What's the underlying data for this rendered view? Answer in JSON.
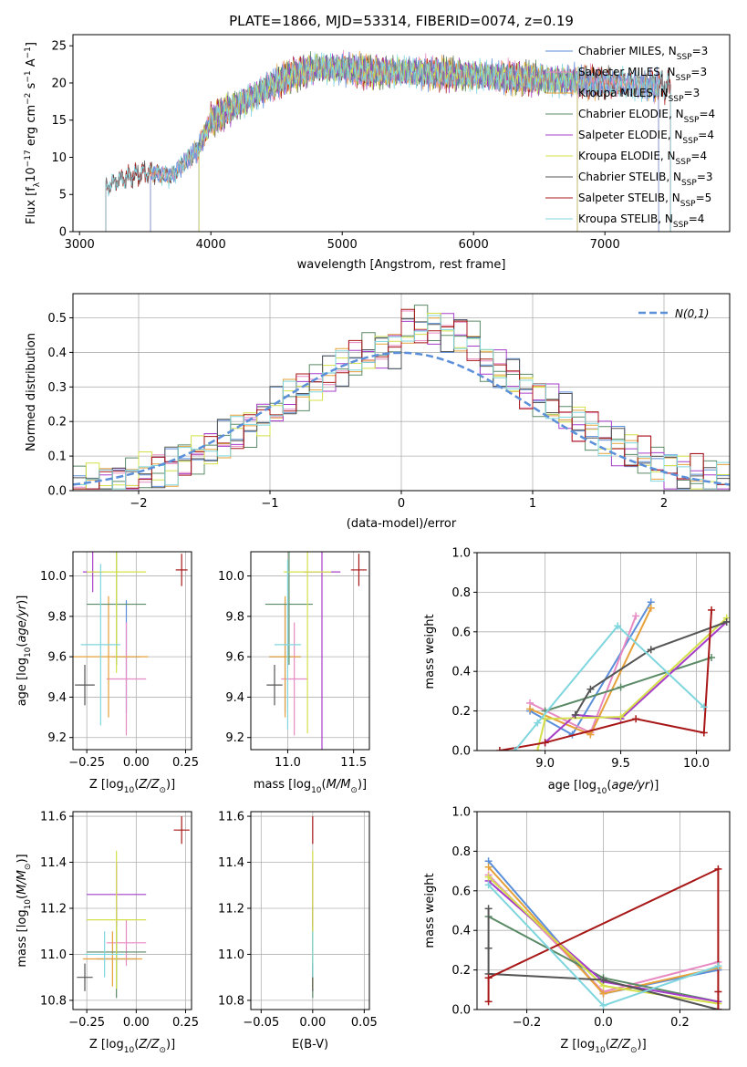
{
  "figure": {
    "title": "PLATE=1866, MJD=53314, FIBERID=0074, z=0.19"
  },
  "models": [
    {
      "name": "Chabrier MILES",
      "nssp": 3,
      "color": "#5b8fd9",
      "label": "Chabrier MILES, N_SSP=3"
    },
    {
      "name": "Salpeter MILES",
      "nssp": 3,
      "color": "#e78ac3",
      "label": "Salpeter MILES, N_SSP=3"
    },
    {
      "name": "Kroupa MILES",
      "nssp": 3,
      "color": "#e6a13a",
      "label": "Kroupa MILES, N_SSP=3"
    },
    {
      "name": "Chabrier ELODIE",
      "nssp": 4,
      "color": "#5a8a66",
      "label": "Chabrier ELODIE, N_SSP=4"
    },
    {
      "name": "Salpeter ELODIE",
      "nssp": 4,
      "color": "#a63dc9",
      "label": "Salpeter ELODIE, N_SSP=4"
    },
    {
      "name": "Kroupa ELODIE",
      "nssp": 4,
      "color": "#d4e04a",
      "label": "Kroupa ELODIE, N_SSP=4"
    },
    {
      "name": "Chabrier STELIB",
      "nssp": 3,
      "color": "#555555",
      "label": "Chabrier STELIB, N_SSP=3"
    },
    {
      "name": "Salpeter STELIB",
      "nssp": 5,
      "color": "#a81717",
      "label": "Salpeter STELIB, N_SSP=5"
    },
    {
      "name": "Kroupa STELIB",
      "nssp": 4,
      "color": "#7fd6de",
      "label": "Kroupa STELIB, N_SSP=4"
    }
  ],
  "chart_data": [
    {
      "id": "spectrum",
      "type": "line",
      "title": "PLATE=1866, MJD=53314, FIBERID=0074, z=0.19",
      "xlabel": "wavelength [Angstrom, rest frame]",
      "ylabel": "Flux [f_λ 10^-17 erg cm^-2 s^-1 A^-1]",
      "xlim": [
        2950,
        7950
      ],
      "ylim": [
        0,
        26.5
      ],
      "xticks": [
        3000,
        4000,
        5000,
        6000,
        7000
      ],
      "yticks": [
        0,
        5,
        10,
        15,
        20,
        25
      ],
      "continuum": {
        "x": [
          3200,
          3300,
          3500,
          3700,
          3900,
          4000,
          4200,
          4400,
          4600,
          4800,
          5000,
          5200,
          5500,
          6000,
          6500,
          7000,
          7500
        ],
        "y": [
          6,
          7,
          8,
          7.5,
          11,
          15,
          17,
          19,
          21,
          22,
          22,
          21.5,
          21.5,
          21,
          20.5,
          20,
          19.5
        ]
      },
      "coverage": [
        {
          "model": "Chabrier MILES",
          "x_start": 3540,
          "x_end": 7410
        },
        {
          "model": "Salpeter MILES",
          "x_start": 3540,
          "x_end": 7410
        },
        {
          "model": "Kroupa MILES",
          "x_start": 3540,
          "x_end": 7410
        },
        {
          "model": "Chabrier ELODIE",
          "x_start": 3910,
          "x_end": 6790
        },
        {
          "model": "Salpeter ELODIE",
          "x_start": 3910,
          "x_end": 6790
        },
        {
          "model": "Kroupa ELODIE",
          "x_start": 3910,
          "x_end": 6790
        },
        {
          "model": "Chabrier STELIB",
          "x_start": 3200,
          "x_end": 7500
        },
        {
          "model": "Salpeter STELIB",
          "x_start": 3200,
          "x_end": 7500
        },
        {
          "model": "Kroupa STELIB",
          "x_start": 3200,
          "x_end": 7500
        }
      ],
      "legend": "upper right"
    },
    {
      "id": "residuals",
      "type": "bar",
      "xlabel": "(data-model)/error",
      "ylabel": "Normed distribution",
      "xlim": [
        -2.5,
        2.5
      ],
      "ylim": [
        0,
        0.57
      ],
      "xticks": [
        -2,
        -1,
        0,
        1,
        2
      ],
      "yticks": [
        0.0,
        0.1,
        0.2,
        0.3,
        0.4,
        0.5
      ],
      "bin_width": 0.1,
      "reference": {
        "name": "N(0,1)",
        "mean": 0,
        "sigma": 1,
        "style": "dashed"
      },
      "grid": true,
      "legend": "upper right"
    },
    {
      "id": "age-vs-Z",
      "type": "scatter",
      "xlabel": "Z [log10(Z/Z⊙)]",
      "ylabel": "age [log10(age/yr)]",
      "xlim": [
        -0.32,
        0.28
      ],
      "ylim": [
        9.14,
        10.12
      ],
      "xticks": [
        -0.25,
        0.0,
        0.25
      ],
      "yticks": [
        9.2,
        9.4,
        9.6,
        9.8,
        10.0
      ],
      "grid": true,
      "points": [
        {
          "model": "Chabrier MILES",
          "x": -0.05,
          "y": 9.6,
          "xerr": 0.07,
          "yerr": 0.28
        },
        {
          "model": "Salpeter MILES",
          "x": -0.05,
          "y": 9.49,
          "xerr": 0.1,
          "yerr": 0.28
        },
        {
          "model": "Kroupa MILES",
          "x": -0.14,
          "y": 9.6,
          "xerr": 0.2,
          "yerr": 0.3
        },
        {
          "model": "Chabrier ELODIE",
          "x": -0.1,
          "y": 9.86,
          "xerr": 0.15,
          "yerr": 0.3
        },
        {
          "model": "Salpeter ELODIE",
          "x": -0.22,
          "y": 10.02,
          "xerr": 0.05,
          "yerr": 0.1
        },
        {
          "model": "Kroupa ELODIE",
          "x": -0.1,
          "y": 10.02,
          "xerr": 0.15,
          "yerr": 0.5
        },
        {
          "model": "Chabrier STELIB",
          "x": -0.26,
          "y": 9.46,
          "xerr": 0.05,
          "yerr": 0.1
        },
        {
          "model": "Salpeter STELIB",
          "x": 0.23,
          "y": 10.03,
          "xerr": 0.03,
          "yerr": 0.08
        },
        {
          "model": "Kroupa STELIB",
          "x": -0.18,
          "y": 9.66,
          "xerr": 0.1,
          "yerr": 0.4
        }
      ]
    },
    {
      "id": "age-vs-mass",
      "type": "scatter",
      "xlabel": "mass [log10(M/M⊙)]",
      "ylabel": "",
      "xlim": [
        10.72,
        11.62
      ],
      "ylim": [
        9.14,
        10.12
      ],
      "xticks": [
        11.0,
        11.5
      ],
      "yticks": [
        9.2,
        9.4,
        9.6,
        9.8,
        10.0
      ],
      "grid": true,
      "points": [
        {
          "model": "Chabrier MILES",
          "x": 10.98,
          "y": 9.6,
          "xerr": 0.12,
          "yerr": 0.28
        },
        {
          "model": "Salpeter MILES",
          "x": 11.05,
          "y": 9.49,
          "xerr": 0.1,
          "yerr": 0.28
        },
        {
          "model": "Kroupa MILES",
          "x": 10.98,
          "y": 9.6,
          "xerr": 0.12,
          "yerr": 0.3
        },
        {
          "model": "Chabrier ELODIE",
          "x": 11.01,
          "y": 9.86,
          "xerr": 0.18,
          "yerr": 0.3
        },
        {
          "model": "Salpeter ELODIE",
          "x": 11.26,
          "y": 10.02,
          "xerr": 0.14,
          "yerr": 1.0
        },
        {
          "model": "Kroupa ELODIE",
          "x": 11.15,
          "y": 10.02,
          "xerr": 0.18,
          "yerr": 0.8
        },
        {
          "model": "Chabrier STELIB",
          "x": 10.9,
          "y": 9.46,
          "xerr": 0.06,
          "yerr": 0.1
        },
        {
          "model": "Salpeter STELIB",
          "x": 11.54,
          "y": 10.03,
          "xerr": 0.06,
          "yerr": 0.08
        },
        {
          "model": "Kroupa STELIB",
          "x": 11.0,
          "y": 9.66,
          "xerr": 0.1,
          "yerr": 0.42
        }
      ]
    },
    {
      "id": "weight-vs-age",
      "type": "line",
      "xlabel": "age [log10(age/yr)]",
      "ylabel": "mass weight",
      "xlim": [
        8.55,
        10.22
      ],
      "ylim": [
        0.0,
        1.0
      ],
      "xticks": [
        9.0,
        9.5,
        10.0
      ],
      "yticks": [
        0.0,
        0.2,
        0.4,
        0.6,
        0.8,
        1.0
      ],
      "grid": true,
      "series": [
        {
          "model": "Chabrier MILES",
          "x": [
            8.9,
            9.18,
            9.7
          ],
          "y": [
            0.2,
            0.08,
            0.75
          ]
        },
        {
          "model": "Salpeter MILES",
          "x": [
            8.9,
            9.3,
            9.6
          ],
          "y": [
            0.24,
            0.09,
            0.68
          ]
        },
        {
          "model": "Kroupa MILES",
          "x": [
            8.9,
            9.3,
            9.7
          ],
          "y": [
            0.21,
            0.08,
            0.72
          ]
        },
        {
          "model": "Chabrier ELODIE",
          "x": [
            9.0,
            9.5,
            10.1
          ],
          "y": [
            0.2,
            0.32,
            0.47
          ]
        },
        {
          "model": "Salpeter ELODIE",
          "x": [
            9.0,
            9.2,
            9.5,
            10.2
          ],
          "y": [
            0.04,
            0.18,
            0.16,
            0.65
          ]
        },
        {
          "model": "Kroupa ELODIE",
          "x": [
            8.95,
            9.0,
            9.5,
            10.2
          ],
          "y": [
            0.0,
            0.16,
            0.17,
            0.67
          ]
        },
        {
          "model": "Chabrier STELIB",
          "x": [
            9.2,
            9.3,
            9.7,
            10.2
          ],
          "y": [
            0.18,
            0.31,
            0.51,
            0.65
          ]
        },
        {
          "model": "Salpeter STELIB",
          "x": [
            8.7,
            9.0,
            9.6,
            10.05,
            10.1
          ],
          "y": [
            0.0,
            0.04,
            0.16,
            0.09,
            0.71
          ]
        },
        {
          "model": "Kroupa STELIB",
          "x": [
            8.8,
            8.95,
            9.48,
            10.05
          ],
          "y": [
            0.0,
            0.14,
            0.63,
            0.22
          ]
        }
      ]
    },
    {
      "id": "mass-vs-Z",
      "type": "scatter",
      "xlabel": "Z [log10(Z/Z⊙)]",
      "ylabel": "mass [log10(M/M⊙)]",
      "xlim": [
        -0.32,
        0.28
      ],
      "ylim": [
        10.76,
        11.62
      ],
      "xticks": [
        -0.25,
        0.0,
        0.25
      ],
      "yticks": [
        10.8,
        11.0,
        11.2,
        11.4,
        11.6
      ],
      "grid": true,
      "points": [
        {
          "model": "Chabrier MILES",
          "x": -0.1,
          "y": 10.98,
          "xerr": 0.1,
          "yerr": 0.12
        },
        {
          "model": "Salpeter MILES",
          "x": -0.05,
          "y": 11.05,
          "xerr": 0.1,
          "yerr": 0.1
        },
        {
          "model": "Kroupa MILES",
          "x": -0.12,
          "y": 10.98,
          "xerr": 0.15,
          "yerr": 0.12
        },
        {
          "model": "Chabrier ELODIE",
          "x": -0.1,
          "y": 11.01,
          "xerr": 0.15,
          "yerr": 0.2
        },
        {
          "model": "Salpeter ELODIE",
          "x": -0.1,
          "y": 11.26,
          "xerr": 0.15,
          "yerr": 0.14
        },
        {
          "model": "Kroupa ELODIE",
          "x": -0.1,
          "y": 11.15,
          "xerr": 0.15,
          "yerr": 0.3
        },
        {
          "model": "Chabrier STELIB",
          "x": -0.26,
          "y": 10.9,
          "xerr": 0.04,
          "yerr": 0.06
        },
        {
          "model": "Salpeter STELIB",
          "x": 0.23,
          "y": 11.54,
          "xerr": 0.04,
          "yerr": 0.06
        },
        {
          "model": "Kroupa STELIB",
          "x": -0.16,
          "y": 11.0,
          "xerr": 0.1,
          "yerr": 0.1
        }
      ]
    },
    {
      "id": "mass-vs-ebv",
      "type": "scatter",
      "xlabel": "E(B-V)",
      "ylabel": "",
      "xlim": [
        -0.06,
        0.055
      ],
      "ylim": [
        10.76,
        11.62
      ],
      "xticks": [
        -0.05,
        0.0,
        0.05
      ],
      "yticks": [
        10.8,
        11.0,
        11.2,
        11.4,
        11.6
      ],
      "grid": true,
      "points": [
        {
          "model": "Chabrier MILES",
          "x": 0.0,
          "y": 10.98,
          "xerr": 0.0,
          "yerr": 0.12
        },
        {
          "model": "Salpeter MILES",
          "x": 0.0,
          "y": 11.05,
          "xerr": 0.0,
          "yerr": 0.1
        },
        {
          "model": "Kroupa MILES",
          "x": 0.0,
          "y": 10.98,
          "xerr": 0.0,
          "yerr": 0.12
        },
        {
          "model": "Chabrier ELODIE",
          "x": 0.0,
          "y": 11.01,
          "xerr": 0.0,
          "yerr": 0.2
        },
        {
          "model": "Salpeter ELODIE",
          "x": 0.0,
          "y": 11.26,
          "xerr": 0.0,
          "yerr": 0.14
        },
        {
          "model": "Kroupa ELODIE",
          "x": 0.0,
          "y": 11.15,
          "xerr": 0.0,
          "yerr": 0.3
        },
        {
          "model": "Chabrier STELIB",
          "x": 0.0,
          "y": 10.9,
          "xerr": 0.0,
          "yerr": 0.06
        },
        {
          "model": "Salpeter STELIB",
          "x": 0.0,
          "y": 11.54,
          "xerr": 0.0,
          "yerr": 0.06
        },
        {
          "model": "Kroupa STELIB",
          "x": 0.0,
          "y": 11.0,
          "xerr": 0.0,
          "yerr": 0.1
        }
      ]
    },
    {
      "id": "weight-vs-Z",
      "type": "line",
      "xlabel": "Z [log10(Z/Z⊙)]",
      "ylabel": "mass weight",
      "xlim": [
        -0.33,
        0.33
      ],
      "ylim": [
        0.0,
        1.0
      ],
      "xticks": [
        -0.2,
        0.0,
        0.2
      ],
      "yticks": [
        0.0,
        0.2,
        0.4,
        0.6,
        0.8,
        1.0
      ],
      "grid": true,
      "series": [
        {
          "model": "Chabrier MILES",
          "x": [
            -0.3,
            0.0,
            0.3
          ],
          "y": [
            0.75,
            0.08,
            0.2
          ]
        },
        {
          "model": "Salpeter MILES",
          "x": [
            -0.3,
            0.0,
            0.3
          ],
          "y": [
            0.68,
            0.09,
            0.24
          ]
        },
        {
          "model": "Kroupa MILES",
          "x": [
            -0.3,
            0.0,
            0.3
          ],
          "y": [
            0.72,
            0.08,
            0.21
          ]
        },
        {
          "model": "Chabrier ELODIE",
          "x": [
            -0.3,
            0.0,
            0.3
          ],
          "y": [
            0.47,
            0.16,
            0.04
          ]
        },
        {
          "model": "Salpeter ELODIE",
          "x": [
            -0.3,
            0.0,
            0.3
          ],
          "y": [
            0.65,
            0.14,
            0.04
          ]
        },
        {
          "model": "Kroupa ELODIE",
          "x": [
            -0.3,
            0.0,
            0.3
          ],
          "y": [
            0.67,
            0.12,
            0.03
          ]
        },
        {
          "model": "Chabrier STELIB",
          "x": [
            -0.3,
            -0.3,
            -0.3,
            0.0,
            0.3
          ],
          "y": [
            0.51,
            0.31,
            0.18,
            0.15,
            0.0
          ]
        },
        {
          "model": "Salpeter STELIB",
          "x": [
            -0.3,
            -0.3,
            0.3,
            0.3,
            0.3
          ],
          "y": [
            0.04,
            0.16,
            0.71,
            0.09,
            0.0
          ]
        },
        {
          "model": "Kroupa STELIB",
          "x": [
            -0.3,
            0.0,
            0.3
          ],
          "y": [
            0.63,
            0.02,
            0.22
          ]
        }
      ]
    }
  ]
}
